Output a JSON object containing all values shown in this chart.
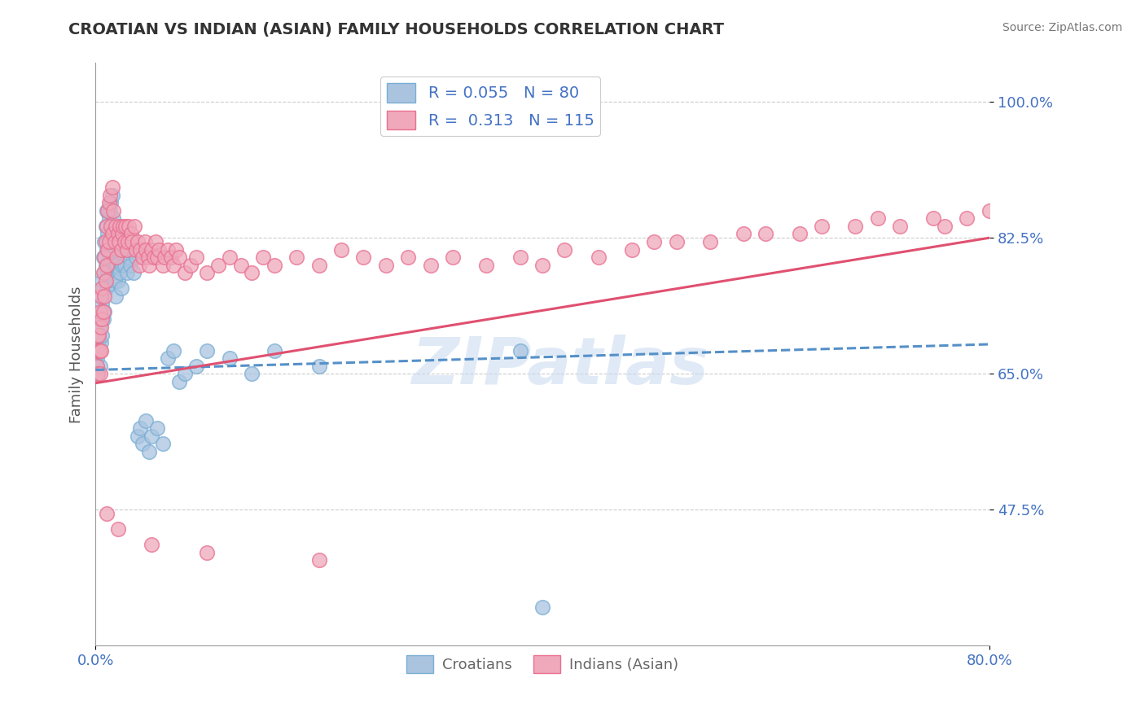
{
  "title": "CROATIAN VS INDIAN (ASIAN) FAMILY HOUSEHOLDS CORRELATION CHART",
  "source_text": "Source: ZipAtlas.com",
  "ylabel": "Family Households",
  "watermark": "ZIPatlas",
  "xlim": [
    0.0,
    0.8
  ],
  "ylim": [
    0.3,
    1.05
  ],
  "yticks": [
    0.475,
    0.65,
    0.825,
    1.0
  ],
  "ytick_labels": [
    "47.5%",
    "65.0%",
    "82.5%",
    "100.0%"
  ],
  "xtick_labels": [
    "0.0%",
    "80.0%"
  ],
  "blue_R": 0.055,
  "blue_N": 80,
  "pink_R": 0.313,
  "pink_N": 115,
  "blue_color": "#aac4e0",
  "pink_color": "#f0a8bb",
  "blue_edge_color": "#7aafd4",
  "pink_edge_color": "#e87090",
  "blue_line_color": "#5590c8",
  "pink_line_color": "#e05070",
  "title_color": "#333333",
  "axis_label_color": "#4472c4",
  "legend_label1": "Croatians",
  "legend_label2": "Indians (Asian)",
  "blue_trend_x0": 0.0,
  "blue_trend_y0": 0.655,
  "blue_trend_x1": 0.8,
  "blue_trend_y1": 0.688,
  "pink_trend_x0": 0.0,
  "pink_trend_y0": 0.638,
  "pink_trend_x1": 0.8,
  "pink_trend_y1": 0.825,
  "blue_scatter_x": [
    0.001,
    0.001,
    0.002,
    0.002,
    0.003,
    0.003,
    0.003,
    0.004,
    0.004,
    0.004,
    0.005,
    0.005,
    0.005,
    0.006,
    0.006,
    0.006,
    0.007,
    0.007,
    0.007,
    0.008,
    0.008,
    0.008,
    0.009,
    0.009,
    0.01,
    0.01,
    0.01,
    0.011,
    0.011,
    0.012,
    0.012,
    0.013,
    0.013,
    0.014,
    0.014,
    0.015,
    0.015,
    0.016,
    0.016,
    0.017,
    0.017,
    0.018,
    0.018,
    0.019,
    0.02,
    0.02,
    0.021,
    0.022,
    0.022,
    0.023,
    0.024,
    0.025,
    0.026,
    0.027,
    0.028,
    0.03,
    0.031,
    0.033,
    0.034,
    0.036,
    0.038,
    0.04,
    0.042,
    0.045,
    0.048,
    0.05,
    0.055,
    0.06,
    0.065,
    0.07,
    0.075,
    0.08,
    0.09,
    0.1,
    0.12,
    0.14,
    0.16,
    0.2,
    0.38,
    0.4
  ],
  "blue_scatter_y": [
    0.66,
    0.67,
    0.68,
    0.65,
    0.72,
    0.7,
    0.69,
    0.71,
    0.66,
    0.68,
    0.75,
    0.72,
    0.69,
    0.77,
    0.74,
    0.7,
    0.8,
    0.76,
    0.72,
    0.82,
    0.78,
    0.73,
    0.84,
    0.79,
    0.86,
    0.81,
    0.76,
    0.83,
    0.78,
    0.85,
    0.79,
    0.86,
    0.8,
    0.87,
    0.81,
    0.88,
    0.82,
    0.85,
    0.79,
    0.83,
    0.77,
    0.81,
    0.75,
    0.79,
    0.82,
    0.77,
    0.81,
    0.78,
    0.82,
    0.76,
    0.79,
    0.82,
    0.79,
    0.81,
    0.78,
    0.8,
    0.79,
    0.81,
    0.78,
    0.8,
    0.57,
    0.58,
    0.56,
    0.59,
    0.55,
    0.57,
    0.58,
    0.56,
    0.67,
    0.68,
    0.64,
    0.65,
    0.66,
    0.68,
    0.67,
    0.65,
    0.68,
    0.66,
    0.68,
    0.35
  ],
  "pink_scatter_x": [
    0.001,
    0.001,
    0.002,
    0.002,
    0.003,
    0.003,
    0.003,
    0.004,
    0.004,
    0.004,
    0.005,
    0.005,
    0.005,
    0.006,
    0.006,
    0.007,
    0.007,
    0.008,
    0.008,
    0.009,
    0.009,
    0.01,
    0.01,
    0.011,
    0.011,
    0.012,
    0.012,
    0.013,
    0.014,
    0.015,
    0.015,
    0.016,
    0.017,
    0.018,
    0.019,
    0.02,
    0.021,
    0.022,
    0.023,
    0.024,
    0.025,
    0.026,
    0.027,
    0.028,
    0.029,
    0.03,
    0.032,
    0.033,
    0.035,
    0.036,
    0.038,
    0.039,
    0.04,
    0.042,
    0.044,
    0.045,
    0.047,
    0.048,
    0.05,
    0.052,
    0.054,
    0.055,
    0.057,
    0.06,
    0.062,
    0.065,
    0.068,
    0.07,
    0.072,
    0.075,
    0.08,
    0.085,
    0.09,
    0.1,
    0.11,
    0.12,
    0.13,
    0.14,
    0.15,
    0.16,
    0.18,
    0.2,
    0.22,
    0.24,
    0.26,
    0.28,
    0.3,
    0.32,
    0.35,
    0.38,
    0.4,
    0.42,
    0.45,
    0.48,
    0.5,
    0.52,
    0.55,
    0.58,
    0.6,
    0.63,
    0.65,
    0.68,
    0.7,
    0.72,
    0.75,
    0.76,
    0.78,
    0.8,
    0.81,
    0.82,
    0.01,
    0.02,
    0.05,
    0.1,
    0.2
  ],
  "pink_scatter_y": [
    0.66,
    0.68,
    0.7,
    0.65,
    0.72,
    0.7,
    0.68,
    0.73,
    0.65,
    0.68,
    0.75,
    0.71,
    0.68,
    0.76,
    0.72,
    0.78,
    0.73,
    0.8,
    0.75,
    0.82,
    0.77,
    0.84,
    0.79,
    0.86,
    0.81,
    0.87,
    0.82,
    0.88,
    0.84,
    0.89,
    0.83,
    0.86,
    0.82,
    0.84,
    0.8,
    0.83,
    0.82,
    0.84,
    0.81,
    0.83,
    0.84,
    0.82,
    0.84,
    0.81,
    0.82,
    0.84,
    0.83,
    0.82,
    0.84,
    0.81,
    0.82,
    0.79,
    0.81,
    0.8,
    0.82,
    0.81,
    0.8,
    0.79,
    0.81,
    0.8,
    0.82,
    0.8,
    0.81,
    0.79,
    0.8,
    0.81,
    0.8,
    0.79,
    0.81,
    0.8,
    0.78,
    0.79,
    0.8,
    0.78,
    0.79,
    0.8,
    0.79,
    0.78,
    0.8,
    0.79,
    0.8,
    0.79,
    0.81,
    0.8,
    0.79,
    0.8,
    0.79,
    0.8,
    0.79,
    0.8,
    0.79,
    0.81,
    0.8,
    0.81,
    0.82,
    0.82,
    0.82,
    0.83,
    0.83,
    0.83,
    0.84,
    0.84,
    0.85,
    0.84,
    0.85,
    0.84,
    0.85,
    0.86,
    0.85,
    0.86,
    0.47,
    0.45,
    0.43,
    0.42,
    0.41
  ]
}
